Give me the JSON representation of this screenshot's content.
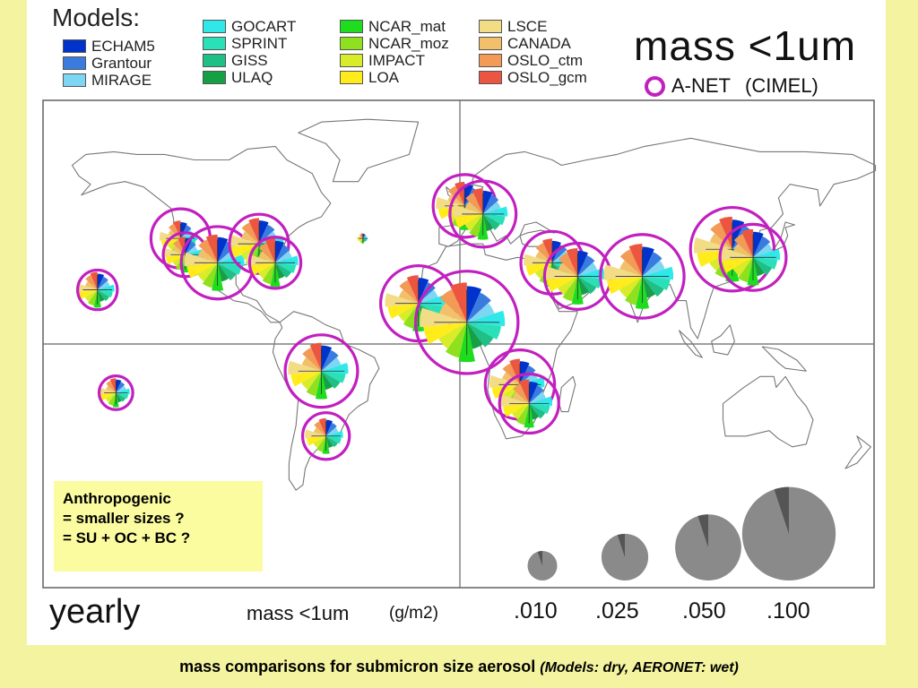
{
  "legend": {
    "title": "Models:",
    "columns": [
      [
        {
          "name": "ECHAM5",
          "color": "#0033cc"
        },
        {
          "name": "Grantour",
          "color": "#3a7be0"
        },
        {
          "name": "MIRAGE",
          "color": "#7fd6f2"
        }
      ],
      [
        {
          "name": "GOCART",
          "color": "#2fe8e8"
        },
        {
          "name": "SPRINT",
          "color": "#29e0b8"
        },
        {
          "name": "GISS",
          "color": "#1fbf86"
        },
        {
          "name": "ULAQ",
          "color": "#15a046"
        }
      ],
      [
        {
          "name": "NCAR_mat",
          "color": "#1edc1e"
        },
        {
          "name": "NCAR_moz",
          "color": "#8fe01e"
        },
        {
          "name": "IMPACT",
          "color": "#d8ec2a"
        },
        {
          "name": "LOA",
          "color": "#ffec1a"
        }
      ],
      [
        {
          "name": "LSCE",
          "color": "#f2dc86"
        },
        {
          "name": "CANADA",
          "color": "#f2c06a"
        },
        {
          "name": "OSLO_ctm",
          "color": "#f29a56"
        },
        {
          "name": "OSLO_gcm",
          "color": "#ec5640"
        }
      ]
    ]
  },
  "header": {
    "title": "mass <1um",
    "anet_label": "A-NET",
    "anet_paren": "(CIMEL)",
    "ring_color": "#c21fc0"
  },
  "annotation": {
    "line1": "Anthropogenic",
    "line2": "= smaller sizes ?",
    "line3": "= SU + OC + BC ?"
  },
  "footer": {
    "period": "yearly",
    "quantity": "mass <1um",
    "unit": "(g/m2)",
    "scale_values": [
      ".010",
      ".025",
      ".050",
      ".100"
    ]
  },
  "caption": {
    "main": "mass comparisons for submicron size aerosol",
    "note": "(Models: dry, AERONET: wet)"
  },
  "sites": [
    {
      "lon": -121,
      "lat": 39,
      "ring": 0.04,
      "pie": 0.012
    },
    {
      "lon": -119,
      "lat": 33,
      "ring": 0.022,
      "pie": 0.012
    },
    {
      "lon": -105,
      "lat": 30,
      "ring": 0.06,
      "pie": 0.03
    },
    {
      "lon": -87,
      "lat": 37,
      "ring": 0.04,
      "pie": 0.025
    },
    {
      "lon": -80,
      "lat": 30,
      "ring": 0.03,
      "pie": 0.022
    },
    {
      "lon": -157,
      "lat": 20,
      "ring": 0.018,
      "pie": 0.012
    },
    {
      "lon": -149,
      "lat": -18,
      "ring": 0.013,
      "pie": 0.008
    },
    {
      "lon": -60,
      "lat": -10,
      "ring": 0.06,
      "pie": 0.03
    },
    {
      "lon": -58,
      "lat": -34,
      "ring": 0.025,
      "pie": 0.012
    },
    {
      "lon": -42,
      "lat": 39,
      "ring": 0.001,
      "pie": 0.001
    },
    {
      "lon": 2,
      "lat": 51,
      "ring": 0.045,
      "pie": 0.022
    },
    {
      "lon": 10,
      "lat": 48,
      "ring": 0.05,
      "pie": 0.025
    },
    {
      "lon": -18,
      "lat": 15,
      "ring": 0.065,
      "pie": 0.03
    },
    {
      "lon": 3,
      "lat": 8,
      "ring": 0.12,
      "pie": 0.06
    },
    {
      "lon": 26,
      "lat": -15,
      "ring": 0.055,
      "pie": 0.025
    },
    {
      "lon": 30,
      "lat": -22,
      "ring": 0.04,
      "pie": 0.022
    },
    {
      "lon": 40,
      "lat": 30,
      "ring": 0.045,
      "pie": 0.022
    },
    {
      "lon": 51,
      "lat": 25,
      "ring": 0.05,
      "pie": 0.03
    },
    {
      "lon": 79,
      "lat": 25,
      "ring": 0.08,
      "pie": 0.04
    },
    {
      "lon": 118,
      "lat": 35,
      "ring": 0.08,
      "pie": 0.04
    },
    {
      "lon": 127,
      "lat": 32,
      "ring": 0.05,
      "pie": 0.03
    }
  ]
}
